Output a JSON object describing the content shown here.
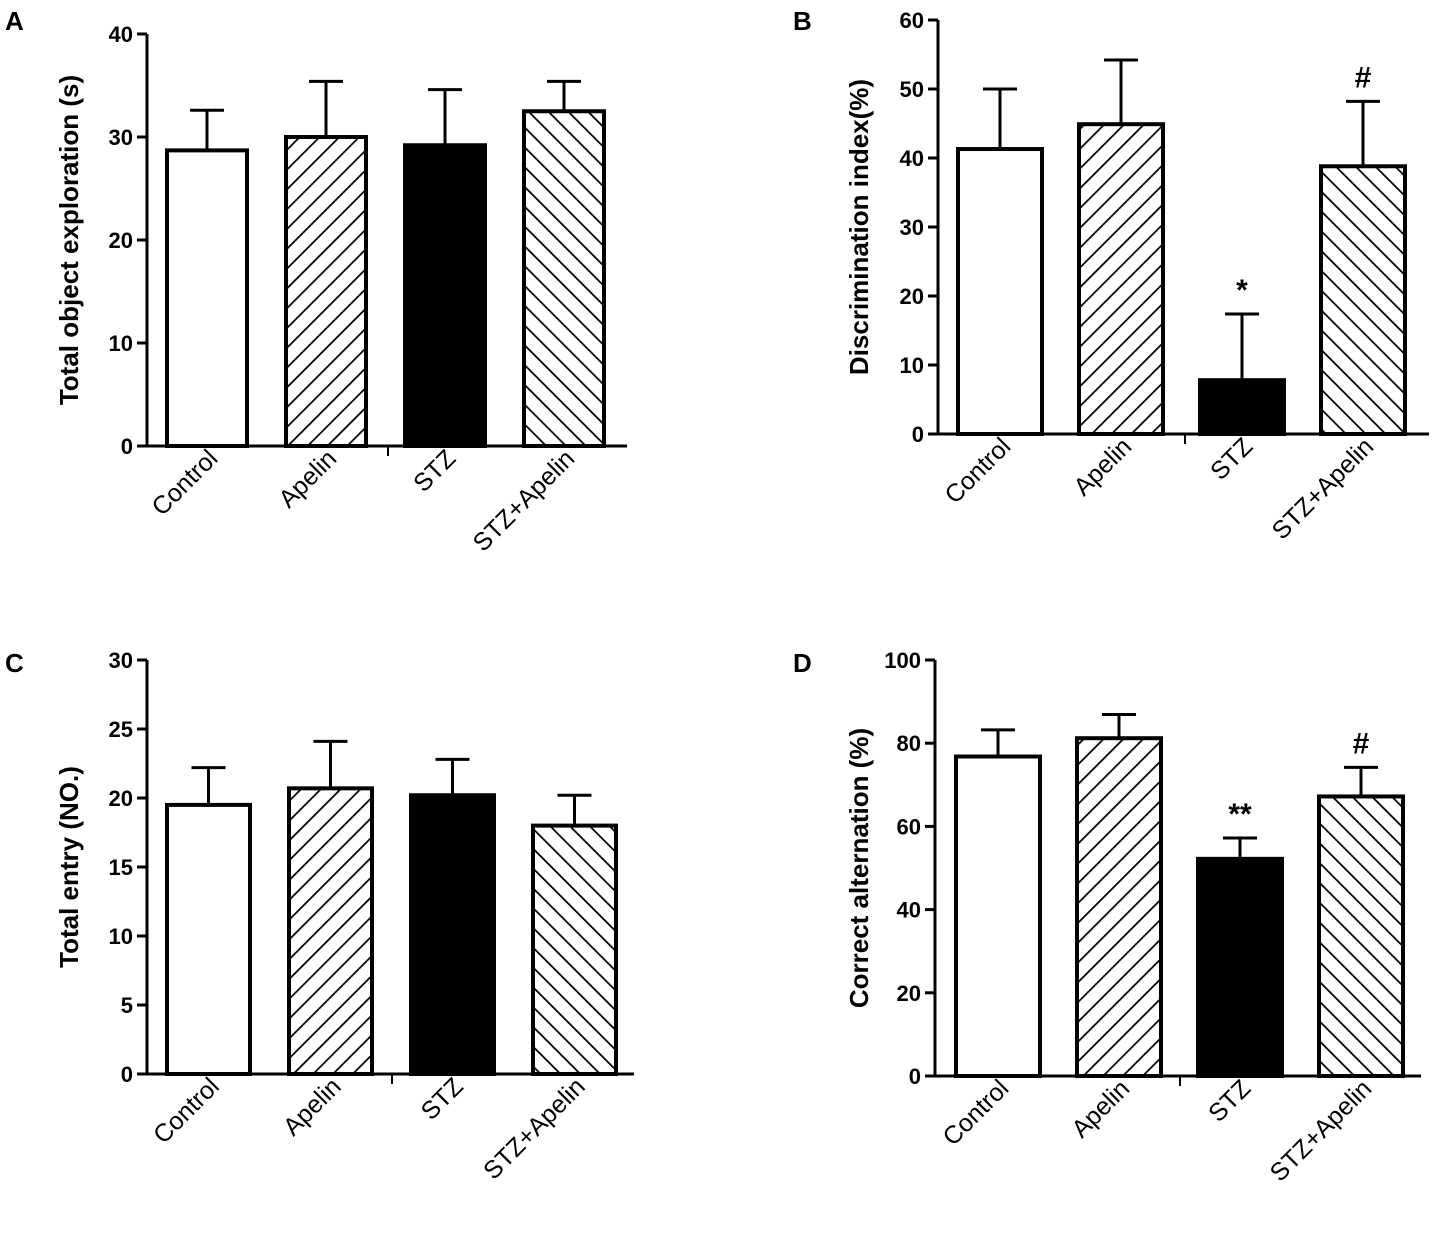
{
  "figure": {
    "style": {
      "line_color": "#000000",
      "fill_open": "#ffffff",
      "fill_solid": "#000000"
    }
  },
  "chart_data": [
    {
      "panel": "A",
      "type": "bar",
      "ylabel": "Total object exploration (s)",
      "ylim": [
        0,
        40
      ],
      "yticks": [
        0,
        10,
        20,
        30,
        40
      ],
      "categories": [
        "Control",
        "Apelin",
        "STZ",
        "STZ+Apelin"
      ],
      "values": [
        28.7,
        30.0,
        29.2,
        32.5
      ],
      "errors": [
        3.9,
        5.4,
        5.4,
        2.9
      ],
      "patterns": [
        "open",
        "hatch-right",
        "solid",
        "hatch-left"
      ],
      "annotations": [
        "",
        "",
        "",
        ""
      ]
    },
    {
      "panel": "B",
      "type": "bar",
      "ylabel": "Discrimination index(%)",
      "ylim": [
        0,
        60
      ],
      "yticks": [
        0,
        10,
        20,
        30,
        40,
        50,
        60
      ],
      "categories": [
        "Control",
        "Apelin",
        "STZ",
        "STZ+Apelin"
      ],
      "values": [
        41.3,
        44.9,
        7.8,
        38.8
      ],
      "errors": [
        8.7,
        9.3,
        9.6,
        9.4
      ],
      "patterns": [
        "open",
        "hatch-right",
        "solid",
        "hatch-left"
      ],
      "annotations": [
        "",
        "",
        "*",
        "#"
      ]
    },
    {
      "panel": "C",
      "type": "bar",
      "ylabel": "Total entry (NO.)",
      "ylim": [
        0,
        30
      ],
      "yticks": [
        0,
        5,
        10,
        15,
        20,
        25,
        30
      ],
      "categories": [
        "Control",
        "Apelin",
        "STZ",
        "STZ+Apelin"
      ],
      "values": [
        19.5,
        20.7,
        20.2,
        18.0
      ],
      "errors": [
        2.7,
        3.4,
        2.6,
        2.2
      ],
      "patterns": [
        "open",
        "hatch-right",
        "solid",
        "hatch-left"
      ],
      "annotations": [
        "",
        "",
        "",
        ""
      ]
    },
    {
      "panel": "D",
      "type": "bar",
      "ylabel": "Correct alternation (%)",
      "ylim": [
        0,
        100
      ],
      "yticks": [
        0,
        20,
        40,
        60,
        80,
        100
      ],
      "categories": [
        "Control",
        "Apelin",
        "STZ",
        "STZ+Apelin"
      ],
      "values": [
        76.8,
        81.2,
        52.2,
        67.2
      ],
      "errors": [
        6.4,
        5.7,
        5.0,
        7.0
      ],
      "patterns": [
        "open",
        "hatch-right",
        "solid",
        "hatch-left"
      ],
      "annotations": [
        "",
        "",
        "**",
        "#"
      ]
    }
  ]
}
